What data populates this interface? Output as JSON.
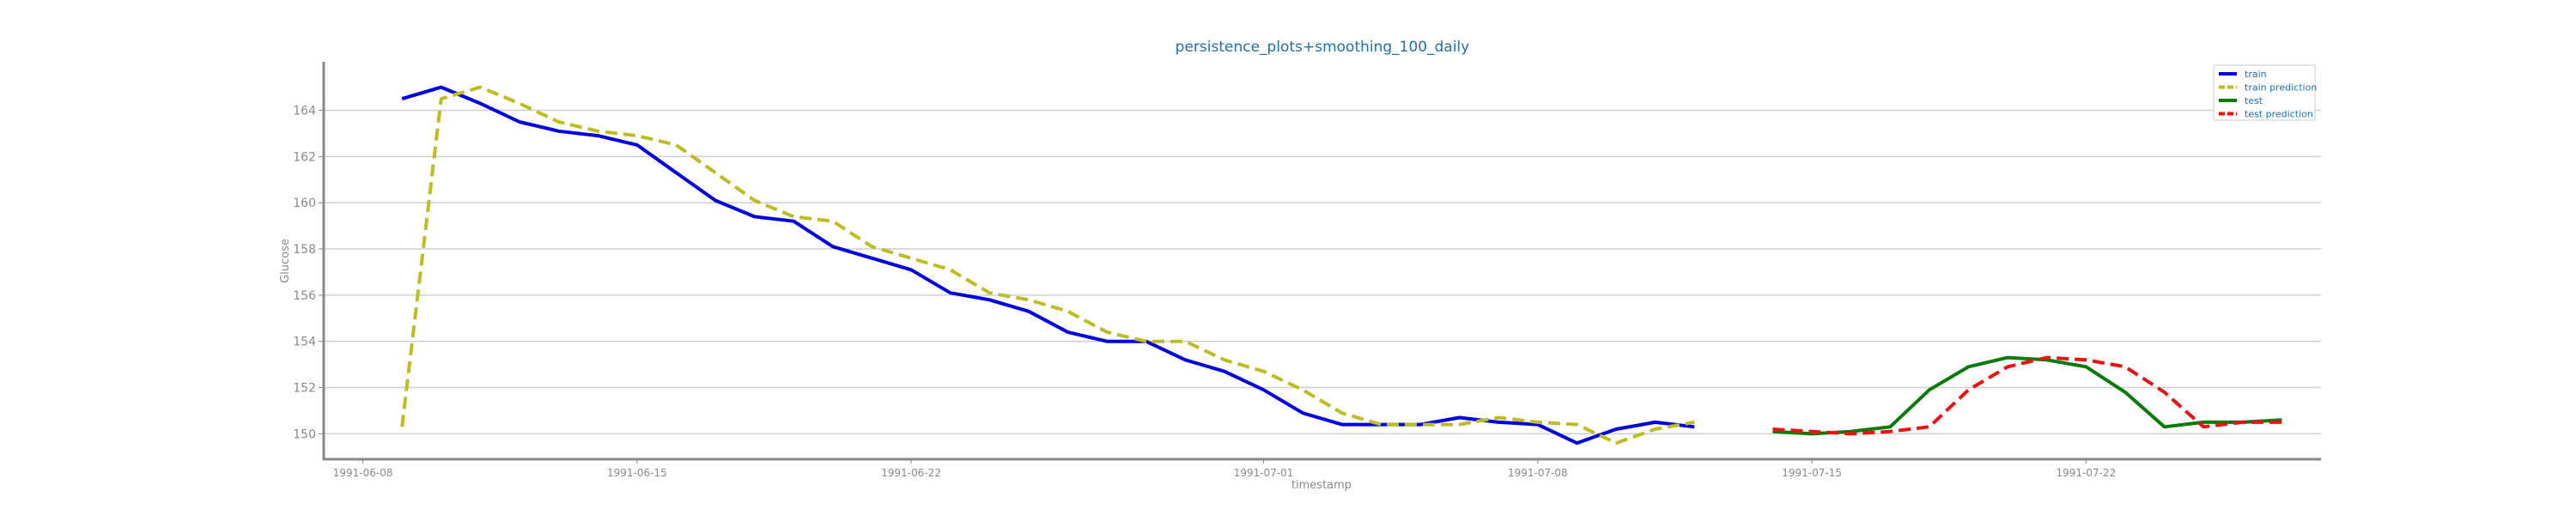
{
  "chart_data": {
    "type": "line",
    "title": "persistence_plots+smoothing_100_daily",
    "xlabel": "timestamp",
    "ylabel": "Glucose",
    "ylim": [
      148.9,
      166.1
    ],
    "xlim": [
      "1991-06-07",
      "1991-07-28"
    ],
    "yticks": [
      150,
      152,
      154,
      156,
      158,
      160,
      162,
      164
    ],
    "xticks": [
      "1991-06-08",
      "1991-06-15",
      "1991-06-22",
      "1991-07-01",
      "1991-07-08",
      "1991-07-15",
      "1991-07-22"
    ],
    "grid": "horizontal",
    "legend_position": "top-right",
    "series": [
      {
        "name": "train",
        "color": "#0000dd",
        "dash": "solid",
        "x": [
          "1991-06-09",
          "1991-06-10",
          "1991-06-11",
          "1991-06-12",
          "1991-06-13",
          "1991-06-14",
          "1991-06-15",
          "1991-06-16",
          "1991-06-17",
          "1991-06-18",
          "1991-06-19",
          "1991-06-20",
          "1991-06-21",
          "1991-06-22",
          "1991-06-23",
          "1991-06-24",
          "1991-06-25",
          "1991-06-26",
          "1991-06-27",
          "1991-06-28",
          "1991-06-29",
          "1991-06-30",
          "1991-07-01",
          "1991-07-02",
          "1991-07-03",
          "1991-07-04",
          "1991-07-05",
          "1991-07-06",
          "1991-07-07",
          "1991-07-08",
          "1991-07-09",
          "1991-07-10",
          "1991-07-11",
          "1991-07-12"
        ],
        "y": [
          164.5,
          165.0,
          164.3,
          163.5,
          163.1,
          162.9,
          162.5,
          161.3,
          160.1,
          159.4,
          159.2,
          158.1,
          157.6,
          157.1,
          156.1,
          155.8,
          155.3,
          154.4,
          154.0,
          154.0,
          153.2,
          152.7,
          151.9,
          150.9,
          150.4,
          150.4,
          150.4,
          150.7,
          150.5,
          150.4,
          149.6,
          150.2,
          150.5,
          150.3
        ]
      },
      {
        "name": "train prediction",
        "color": "#bcbd22",
        "dash": "dashed",
        "x": [
          "1991-06-09",
          "1991-06-10",
          "1991-06-11",
          "1991-06-12",
          "1991-06-13",
          "1991-06-14",
          "1991-06-15",
          "1991-06-16",
          "1991-06-17",
          "1991-06-18",
          "1991-06-19",
          "1991-06-20",
          "1991-06-21",
          "1991-06-22",
          "1991-06-23",
          "1991-06-24",
          "1991-06-25",
          "1991-06-26",
          "1991-06-27",
          "1991-06-28",
          "1991-06-29",
          "1991-06-30",
          "1991-07-01",
          "1991-07-02",
          "1991-07-03",
          "1991-07-04",
          "1991-07-05",
          "1991-07-06",
          "1991-07-07",
          "1991-07-08",
          "1991-07-09",
          "1991-07-10",
          "1991-07-11",
          "1991-07-12"
        ],
        "y": [
          150.3,
          164.5,
          165.0,
          164.3,
          163.5,
          163.1,
          162.9,
          162.5,
          161.3,
          160.1,
          159.4,
          159.2,
          158.1,
          157.6,
          157.1,
          156.1,
          155.8,
          155.3,
          154.4,
          154.0,
          154.0,
          153.2,
          152.7,
          151.9,
          150.9,
          150.4,
          150.4,
          150.4,
          150.7,
          150.5,
          150.4,
          149.6,
          150.2,
          150.5
        ]
      },
      {
        "name": "test",
        "color": "#0a7a0a",
        "dash": "solid",
        "x": [
          "1991-07-14",
          "1991-07-15",
          "1991-07-16",
          "1991-07-17",
          "1991-07-18",
          "1991-07-19",
          "1991-07-20",
          "1991-07-21",
          "1991-07-22",
          "1991-07-23",
          "1991-07-24",
          "1991-07-25",
          "1991-07-26",
          "1991-07-27"
        ],
        "y": [
          150.1,
          150.0,
          150.1,
          150.3,
          151.9,
          152.9,
          153.3,
          153.2,
          152.9,
          151.8,
          150.3,
          150.5,
          150.5,
          150.6
        ]
      },
      {
        "name": "test prediction",
        "color": "#ee1111",
        "dash": "dashed",
        "x": [
          "1991-07-14",
          "1991-07-15",
          "1991-07-16",
          "1991-07-17",
          "1991-07-18",
          "1991-07-19",
          "1991-07-20",
          "1991-07-21",
          "1991-07-22",
          "1991-07-23",
          "1991-07-24",
          "1991-07-25",
          "1991-07-26",
          "1991-07-27"
        ],
        "y": [
          150.2,
          150.1,
          150.0,
          150.1,
          150.3,
          151.9,
          152.9,
          153.3,
          153.2,
          152.9,
          151.8,
          150.3,
          150.5,
          150.5
        ]
      }
    ]
  }
}
